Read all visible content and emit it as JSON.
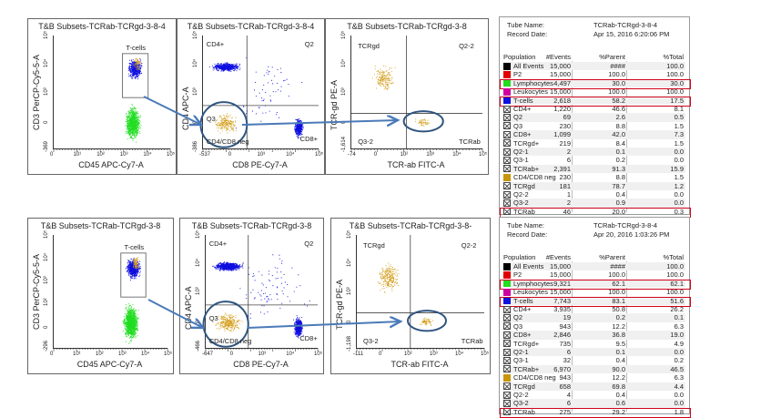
{
  "plots": [
    {
      "title": "T&B Subsets-TCRab-TCRgd-3-8-4",
      "xlabel": "CD45 APC-Cy7-A",
      "ylabel": "CD3 PerCP-Cy5-5-A",
      "xticks": [
        "0",
        "10¹",
        "10²",
        "10³",
        "10⁴",
        "10⁵"
      ],
      "yticks": [
        "-369",
        "0",
        "10³",
        "10⁴",
        "10⁵"
      ],
      "gates": [
        "T-cells"
      ]
    },
    {
      "title": "T&B Subsets-TCRab-TCRgd-3-8-4",
      "xlabel": "CD8 PE-Cy7-A",
      "ylabel": "CD4 APC-A",
      "xticks": [
        "-537",
        "0",
        "10³",
        "10⁴",
        "10⁵"
      ],
      "yticks": [
        "-386",
        "0",
        "10³",
        "10⁴",
        "10⁵"
      ],
      "gates": [
        "CD4+",
        "Q2",
        "Q3",
        "CD4/CD8 neg",
        "CD8+"
      ]
    },
    {
      "title": "T&B Subsets-TCRab-TCRgd-3-8",
      "xlabel": "TCR-ab FITC-A",
      "ylabel": "TCR-gd PE-A",
      "xticks": [
        "-74",
        "0",
        "10²",
        "10³",
        "10⁴",
        "10⁵"
      ],
      "yticks": [
        "-1,614",
        "0",
        "10³",
        "10⁴",
        "10⁵"
      ],
      "gates": [
        "TCRgd",
        "Q2-2",
        "Q3-2",
        "TCRab"
      ]
    },
    {
      "title": "T&B Subsets-TCRab-TCRgd-3-8",
      "xlabel": "CD45 APC-Cy7-A",
      "ylabel": "CD3 PerCP-Cy5-5-A",
      "xticks": [
        "0",
        "10¹",
        "10²",
        "10³",
        "10⁴",
        "10⁵"
      ],
      "yticks": [
        "-296",
        "0",
        "10²",
        "10³",
        "10⁴",
        "10⁵"
      ],
      "gates": [
        "T-cells"
      ]
    },
    {
      "title": "T&B Subsets-TCRab-TCRgd-3-8",
      "xlabel": "CD8 PE-Cy7-A",
      "ylabel": "CD4 APC-A",
      "xticks": [
        "-647",
        "0",
        "10³",
        "10⁴",
        "10⁵"
      ],
      "yticks": [
        "-466",
        "0",
        "10³",
        "10⁴",
        "10⁵"
      ],
      "gates": [
        "CD4+",
        "Q2",
        "Q3",
        "CD4/CD8 neg",
        "CD8+"
      ]
    },
    {
      "title": "T&B Subsets-TCRab-TCRgd-3-8-",
      "xlabel": "TCR-ab FITC-A",
      "ylabel": "TCR-gd PE-A",
      "xticks": [
        "-111",
        "0",
        "10²",
        "10³",
        "10⁴",
        "10⁵"
      ],
      "yticks": [
        "-1,198",
        "0",
        "10³",
        "10⁴",
        "10⁵"
      ],
      "gates": [
        "TCRgd",
        "Q2-2",
        "Q3-2",
        "TCRab"
      ]
    }
  ],
  "colors": {
    "lymphocytes": "#22dd22",
    "tcells": "#1010e0",
    "neg": "#d4a020",
    "highlight": "#d0021b",
    "arrow": "#4a7ab8",
    "circle": "#2f5580"
  },
  "tables": [
    {
      "tube_label": "Tube Name:",
      "tube": "TCRab-TCRgd-3-8-4",
      "date_label": "Record Date:",
      "date": "Apr 15, 2016 6:20:06 PM",
      "headers": [
        "Population",
        "#Events",
        "%Parent",
        "%Total"
      ],
      "rows": [
        {
          "swatch": "#000000",
          "name": "All Events",
          "events": "15,000",
          "parent": "####",
          "total": "100.0"
        },
        {
          "swatch": "#e00000",
          "name": "P2",
          "events": "15,000",
          "parent": "100.0",
          "total": "100.0"
        },
        {
          "swatch": "#22dd22",
          "name": "Lymphocytes",
          "events": "4,497",
          "parent": "30.0",
          "total": "30.0",
          "highlight": true
        },
        {
          "swatch": "#d000a0",
          "name": "Leukocytes",
          "events": "15,000",
          "parent": "100.0",
          "total": "100.0"
        },
        {
          "swatch": "#1010e0",
          "name": "T-cells",
          "events": "2,618",
          "parent": "58.2",
          "total": "17.5",
          "highlight": true
        },
        {
          "swatch": "x",
          "name": "CD4+",
          "events": "1,220",
          "parent": "46.6",
          "total": "8.1"
        },
        {
          "swatch": "x",
          "name": "Q2",
          "events": "69",
          "parent": "2.6",
          "total": "0.5"
        },
        {
          "swatch": "x",
          "name": "Q3",
          "events": "230",
          "parent": "8.8",
          "total": "1.5"
        },
        {
          "swatch": "x",
          "name": "CD8+",
          "events": "1,099",
          "parent": "42.0",
          "total": "7.3"
        },
        {
          "swatch": "x",
          "name": "TCRgd+",
          "events": "219",
          "parent": "8.4",
          "total": "1.5"
        },
        {
          "swatch": "x",
          "name": "Q2-1",
          "events": "2",
          "parent": "0.1",
          "total": "0.0"
        },
        {
          "swatch": "x",
          "name": "Q3-1",
          "events": "6",
          "parent": "0.2",
          "total": "0.0"
        },
        {
          "swatch": "x",
          "name": "TCRab+",
          "events": "2,391",
          "parent": "91.3",
          "total": "15.9"
        },
        {
          "swatch": "#c8960a",
          "name": "CD4/CD8 neg",
          "events": "230",
          "parent": "8.8",
          "total": "1.5"
        },
        {
          "swatch": "x",
          "name": "TCRgd",
          "events": "181",
          "parent": "78.7",
          "total": "1.2"
        },
        {
          "swatch": "x",
          "name": "Q2-2",
          "events": "1",
          "parent": "0.4",
          "total": "0.0"
        },
        {
          "swatch": "x",
          "name": "Q3-2",
          "events": "2",
          "parent": "0.9",
          "total": "0.0"
        },
        {
          "swatch": "x",
          "name": "TCRab",
          "events": "46",
          "parent": "20.0",
          "total": "0.3",
          "highlight": true
        }
      ]
    },
    {
      "tube_label": "Tube Name:",
      "tube": "TCRab-TCRgd-3-8-4",
      "date_label": "Record Date:",
      "date": "Apr 20, 2016 1:03:26 PM",
      "headers": [
        "Population",
        "#Events",
        "%Parent",
        "%Total"
      ],
      "rows": [
        {
          "swatch": "#000000",
          "name": "All Events",
          "events": "15,000",
          "parent": "####",
          "total": "100.0"
        },
        {
          "swatch": "#e00000",
          "name": "P2",
          "events": "15,000",
          "parent": "100.0",
          "total": "100.0"
        },
        {
          "swatch": "#22dd22",
          "name": "Lymphocytes",
          "events": "9,321",
          "parent": "62.1",
          "total": "62.1",
          "highlight": true
        },
        {
          "swatch": "#d000a0",
          "name": "Leukocytes",
          "events": "15,000",
          "parent": "100.0",
          "total": "100.0"
        },
        {
          "swatch": "#1010e0",
          "name": "T-cells",
          "events": "7,743",
          "parent": "83.1",
          "total": "51.6",
          "highlight": true
        },
        {
          "swatch": "x",
          "name": "CD4+",
          "events": "3,935",
          "parent": "50.8",
          "total": "26.2"
        },
        {
          "swatch": "x",
          "name": "Q2",
          "events": "19",
          "parent": "0.2",
          "total": "0.1"
        },
        {
          "swatch": "x",
          "name": "Q3",
          "events": "943",
          "parent": "12.2",
          "total": "6.3"
        },
        {
          "swatch": "x",
          "name": "CD8+",
          "events": "2,846",
          "parent": "36.8",
          "total": "19.0"
        },
        {
          "swatch": "x",
          "name": "TCRgd+",
          "events": "735",
          "parent": "9.5",
          "total": "4.9"
        },
        {
          "swatch": "x",
          "name": "Q2-1",
          "events": "6",
          "parent": "0.1",
          "total": "0.0"
        },
        {
          "swatch": "x",
          "name": "Q3-1",
          "events": "32",
          "parent": "0.4",
          "total": "0.2"
        },
        {
          "swatch": "x",
          "name": "TCRab+",
          "events": "6,970",
          "parent": "90.0",
          "total": "46.5"
        },
        {
          "swatch": "#c8960a",
          "name": "CD4/CD8 neg",
          "events": "943",
          "parent": "12.2",
          "total": "6.3"
        },
        {
          "swatch": "x",
          "name": "TCRgd",
          "events": "658",
          "parent": "69.8",
          "total": "4.4"
        },
        {
          "swatch": "x",
          "name": "Q2-2",
          "events": "4",
          "parent": "0.4",
          "total": "0.0"
        },
        {
          "swatch": "x",
          "name": "Q3-2",
          "events": "6",
          "parent": "0.6",
          "total": "0.0"
        },
        {
          "swatch": "x",
          "name": "TCRab",
          "events": "275",
          "parent": "29.2",
          "total": "1.8",
          "highlight": true
        }
      ]
    }
  ]
}
